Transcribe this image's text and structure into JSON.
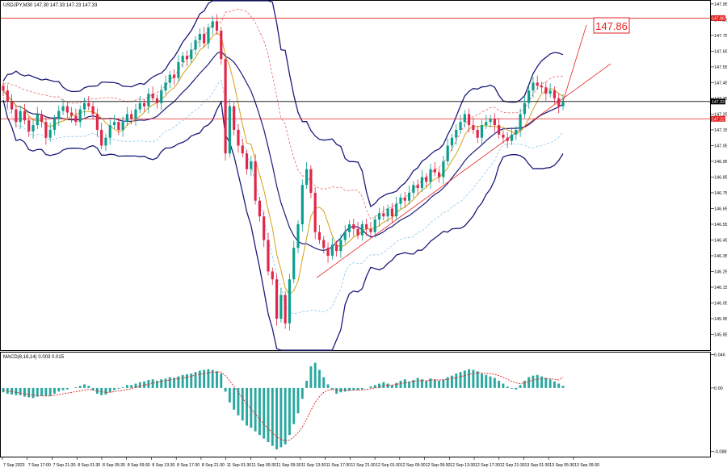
{
  "header": {
    "symbol_line": "USDJPY,M30 147.30 147.33 147.23 147.33",
    "macd_line": "MACD(8,18,14) 0.003 0.015"
  },
  "colors": {
    "bull_candle": "#0a9e8f",
    "bear_candle": "#e0264a",
    "bollinger": "#1b1a7a",
    "envelope": "#e05a5a",
    "ma_fast": "#d4a017",
    "ma_slow": "#7fbfe6",
    "level_line": "#e62020",
    "current_line": "#000000",
    "macd_hist": "#2aa8a0",
    "macd_signal": "#e02020"
  },
  "chart_data": [
    {
      "type": "candlestick",
      "symbol": "USDJPY",
      "timeframe": "M30",
      "ylim": [
        145.75,
        147.97
      ],
      "price_ticks": [
        "147.95",
        "147.85",
        "147.75",
        "147.65",
        "147.55",
        "147.45",
        "147.35",
        "147.25",
        "147.15",
        "147.05",
        "146.95",
        "146.85",
        "146.75",
        "146.65",
        "146.55",
        "146.45",
        "146.35",
        "146.25",
        "146.15",
        "146.05",
        "145.95",
        "145.85"
      ],
      "price_tick_values": [
        147.95,
        147.85,
        147.75,
        147.65,
        147.55,
        147.45,
        147.35,
        147.25,
        147.15,
        147.05,
        146.95,
        146.85,
        146.75,
        146.65,
        146.55,
        146.45,
        146.35,
        146.25,
        146.15,
        146.05,
        145.95,
        145.85
      ],
      "time_labels": [
        "7 Sep 2023",
        "7 Sep 17:00",
        "7 Sep 21:30",
        "8 Sep 01:30",
        "8 Sep 05:30",
        "8 Sep 09:30",
        "8 Sep 13:30",
        "8 Sep 17:30",
        "8 Sep 21:30",
        "11 Sep 01:30",
        "11 Sep 05:30",
        "11 Sep 09:30",
        "11 Sep 13:30",
        "11 Sep 17:30",
        "11 Sep 21:30",
        "12 Sep 01:30",
        "12 Sep 05:30",
        "12 Sep 09:30",
        "12 Sep 13:30",
        "12 Sep 17:30",
        "12 Sep 21:30",
        "13 Sep 01:30",
        "13 Sep 05:30",
        "13 Sep 09:30"
      ],
      "levels": {
        "resistance": 147.86,
        "support": 147.22,
        "current": 147.33
      },
      "level_labels": {
        "resistance": "147.86",
        "support": "147.22",
        "current": "147.33"
      },
      "annotation": "147.86",
      "trendline": [
        [
          146.21,
          147.57
        ]
      ],
      "close_series": [
        147.4,
        147.33,
        147.28,
        147.2,
        147.27,
        147.21,
        147.14,
        147.18,
        147.25,
        147.2,
        147.1,
        147.15,
        147.22,
        147.27,
        147.3,
        147.26,
        147.24,
        147.2,
        147.28,
        147.32,
        147.3,
        147.25,
        147.15,
        147.05,
        147.1,
        147.18,
        147.2,
        147.15,
        147.2,
        147.25,
        147.22,
        147.28,
        147.32,
        147.3,
        147.38,
        147.35,
        147.32,
        147.4,
        147.45,
        147.5,
        147.48,
        147.58,
        147.62,
        147.6,
        147.66,
        147.72,
        147.76,
        147.7,
        147.8,
        147.84,
        147.78,
        147.6,
        147.0,
        147.3,
        147.15,
        147.05,
        147.0,
        146.9,
        146.95,
        146.7,
        146.6,
        146.45,
        146.25,
        146.2,
        145.95,
        146.1,
        145.92,
        146.2,
        146.4,
        146.55,
        146.8,
        146.9,
        146.75,
        146.5,
        146.45,
        146.4,
        146.35,
        146.42,
        146.38,
        146.45,
        146.5,
        146.55,
        146.52,
        146.48,
        146.55,
        146.52,
        146.5,
        146.58,
        146.62,
        146.6,
        146.65,
        146.6,
        146.68,
        146.72,
        146.7,
        146.75,
        146.8,
        146.78,
        146.85,
        146.82,
        146.9,
        146.88,
        146.85,
        146.95,
        147.05,
        147.1,
        147.15,
        147.2,
        147.25,
        147.18,
        147.15,
        147.1,
        147.18,
        147.2,
        147.22,
        147.18,
        147.12,
        147.1,
        147.08,
        147.12,
        147.15,
        147.25,
        147.32,
        147.4,
        147.45,
        147.43,
        147.42,
        147.38,
        147.4,
        147.35,
        147.3,
        147.33
      ]
    },
    {
      "type": "macd",
      "label": "MACD(8,18,14)",
      "values": [
        0.003,
        0.015
      ],
      "ylim": [
        -0.095,
        0.049
      ],
      "ticks": [
        "0.046",
        "0.00",
        "-0.088"
      ],
      "tick_values": [
        0.046,
        0.0,
        -0.088
      ],
      "histogram": [
        -0.006,
        -0.008,
        -0.009,
        -0.01,
        -0.01,
        -0.012,
        -0.013,
        -0.014,
        -0.012,
        -0.011,
        -0.011,
        -0.011,
        -0.008,
        -0.005,
        -0.003,
        -0.002,
        0.0,
        0.001,
        0.003,
        0.005,
        0.003,
        -0.003,
        -0.008,
        -0.01,
        -0.009,
        -0.006,
        -0.003,
        -0.001,
        0.001,
        0.004,
        0.004,
        0.006,
        0.008,
        0.009,
        0.011,
        0.012,
        0.01,
        0.012,
        0.013,
        0.015,
        0.014,
        0.016,
        0.018,
        0.019,
        0.02,
        0.022,
        0.024,
        0.025,
        0.026,
        0.025,
        0.023,
        0.02,
        -0.005,
        -0.02,
        -0.03,
        -0.038,
        -0.045,
        -0.052,
        -0.055,
        -0.06,
        -0.065,
        -0.07,
        -0.075,
        -0.08,
        -0.085,
        -0.082,
        -0.078,
        -0.065,
        -0.05,
        -0.035,
        -0.015,
        0.01,
        0.03,
        0.035,
        0.025,
        0.015,
        0.005,
        -0.002,
        -0.008,
        -0.006,
        -0.005,
        -0.004,
        -0.003,
        -0.003,
        -0.002,
        0.0,
        0.002,
        0.004,
        0.006,
        0.008,
        0.006,
        0.004,
        0.007,
        0.01,
        0.012,
        0.009,
        0.011,
        0.014,
        0.012,
        0.01,
        0.013,
        0.012,
        0.01,
        0.012,
        0.015,
        0.017,
        0.02,
        0.022,
        0.024,
        0.026,
        0.025,
        0.023,
        0.02,
        0.018,
        0.016,
        0.014,
        0.01,
        0.006,
        0.002,
        -0.001,
        -0.002,
        0.004,
        0.01,
        0.015,
        0.017,
        0.018,
        0.016,
        0.014,
        0.012,
        0.009,
        0.006,
        0.003
      ],
      "signal": [
        -0.003,
        -0.004,
        -0.005,
        -0.006,
        -0.007,
        -0.008,
        -0.009,
        -0.01,
        -0.01,
        -0.011,
        -0.011,
        -0.011,
        -0.01,
        -0.009,
        -0.008,
        -0.007,
        -0.006,
        -0.005,
        -0.004,
        -0.003,
        -0.002,
        -0.003,
        -0.004,
        -0.005,
        -0.006,
        -0.006,
        -0.005,
        -0.004,
        -0.003,
        -0.002,
        -0.001,
        0.001,
        0.002,
        0.004,
        0.005,
        0.007,
        0.008,
        0.009,
        0.01,
        0.011,
        0.012,
        0.013,
        0.014,
        0.015,
        0.016,
        0.018,
        0.019,
        0.02,
        0.021,
        0.022,
        0.022,
        0.022,
        0.017,
        0.01,
        0.002,
        -0.006,
        -0.014,
        -0.022,
        -0.029,
        -0.036,
        -0.043,
        -0.05,
        -0.056,
        -0.062,
        -0.068,
        -0.071,
        -0.073,
        -0.072,
        -0.068,
        -0.062,
        -0.054,
        -0.043,
        -0.031,
        -0.02,
        -0.012,
        -0.006,
        -0.003,
        -0.002,
        -0.003,
        -0.003,
        -0.003,
        -0.003,
        -0.003,
        -0.003,
        -0.003,
        -0.002,
        -0.001,
        0.0,
        0.001,
        0.003,
        0.004,
        0.004,
        0.005,
        0.006,
        0.007,
        0.008,
        0.009,
        0.01,
        0.01,
        0.01,
        0.011,
        0.011,
        0.011,
        0.011,
        0.012,
        0.013,
        0.014,
        0.016,
        0.017,
        0.019,
        0.02,
        0.021,
        0.021,
        0.02,
        0.02,
        0.019,
        0.017,
        0.015,
        0.012,
        0.009,
        0.007,
        0.006,
        0.007,
        0.009,
        0.011,
        0.012,
        0.013,
        0.013,
        0.013,
        0.012,
        0.011,
        0.015
      ]
    }
  ]
}
